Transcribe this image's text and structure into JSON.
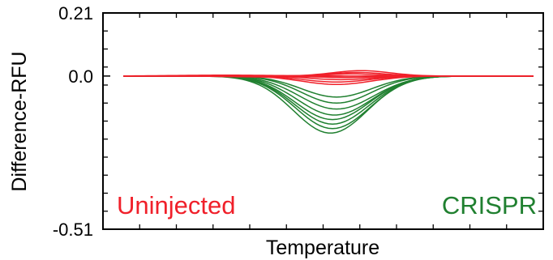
{
  "chart_data": {
    "type": "line",
    "title": "",
    "xlabel": "Temperature",
    "ylabel": "Difference-RFU",
    "ylim": [
      -0.51,
      0.21
    ],
    "y_ticks": [
      {
        "value": 0.21,
        "label": "0.21"
      },
      {
        "value": 0.0,
        "label": "0.0"
      },
      {
        "value": -0.51,
        "label": "-0.51"
      }
    ],
    "x_tick_count": 12,
    "y_minor_tick_count": 12,
    "grid": false,
    "annotations": [
      {
        "text": "Uninjected",
        "color": "#f0202a",
        "placement": "bottom-left"
      },
      {
        "text": "CRISPR",
        "color": "#208030",
        "placement": "bottom-right"
      }
    ],
    "curve_model": {
      "shape": "gaussian",
      "x_domain": [
        0,
        1
      ],
      "x_samples": 101,
      "flat_start": 0.0,
      "flat_end": 1.0
    },
    "series_groups": [
      {
        "group": "Uninjected",
        "color": "#f0202a",
        "curves": [
          {
            "peak": 0.018,
            "center": 0.58,
            "width": 0.07
          },
          {
            "peak": 0.012,
            "center": 0.57,
            "width": 0.065
          },
          {
            "peak": 0.007,
            "center": 0.56,
            "width": 0.06
          },
          {
            "peak": -0.005,
            "center": 0.54,
            "width": 0.07
          },
          {
            "peak": -0.012,
            "center": 0.53,
            "width": 0.075
          },
          {
            "peak": -0.02,
            "center": 0.52,
            "width": 0.08
          },
          {
            "peak": -0.028,
            "center": 0.52,
            "width": 0.085
          },
          {
            "peak": 0.003,
            "center": 0.25,
            "width": 0.12
          },
          {
            "peak": -0.003,
            "center": 0.35,
            "width": 0.1
          }
        ]
      },
      {
        "group": "CRISPR",
        "color": "#208030",
        "curves": [
          {
            "peak": -0.07,
            "center": 0.52,
            "width": 0.085
          },
          {
            "peak": -0.09,
            "center": 0.52,
            "width": 0.085
          },
          {
            "peak": -0.11,
            "center": 0.52,
            "width": 0.09
          },
          {
            "peak": -0.13,
            "center": 0.515,
            "width": 0.09
          },
          {
            "peak": -0.145,
            "center": 0.51,
            "width": 0.09
          },
          {
            "peak": -0.16,
            "center": 0.51,
            "width": 0.09
          },
          {
            "peak": -0.175,
            "center": 0.51,
            "width": 0.09
          },
          {
            "peak": -0.19,
            "center": 0.505,
            "width": 0.09
          }
        ]
      }
    ]
  }
}
